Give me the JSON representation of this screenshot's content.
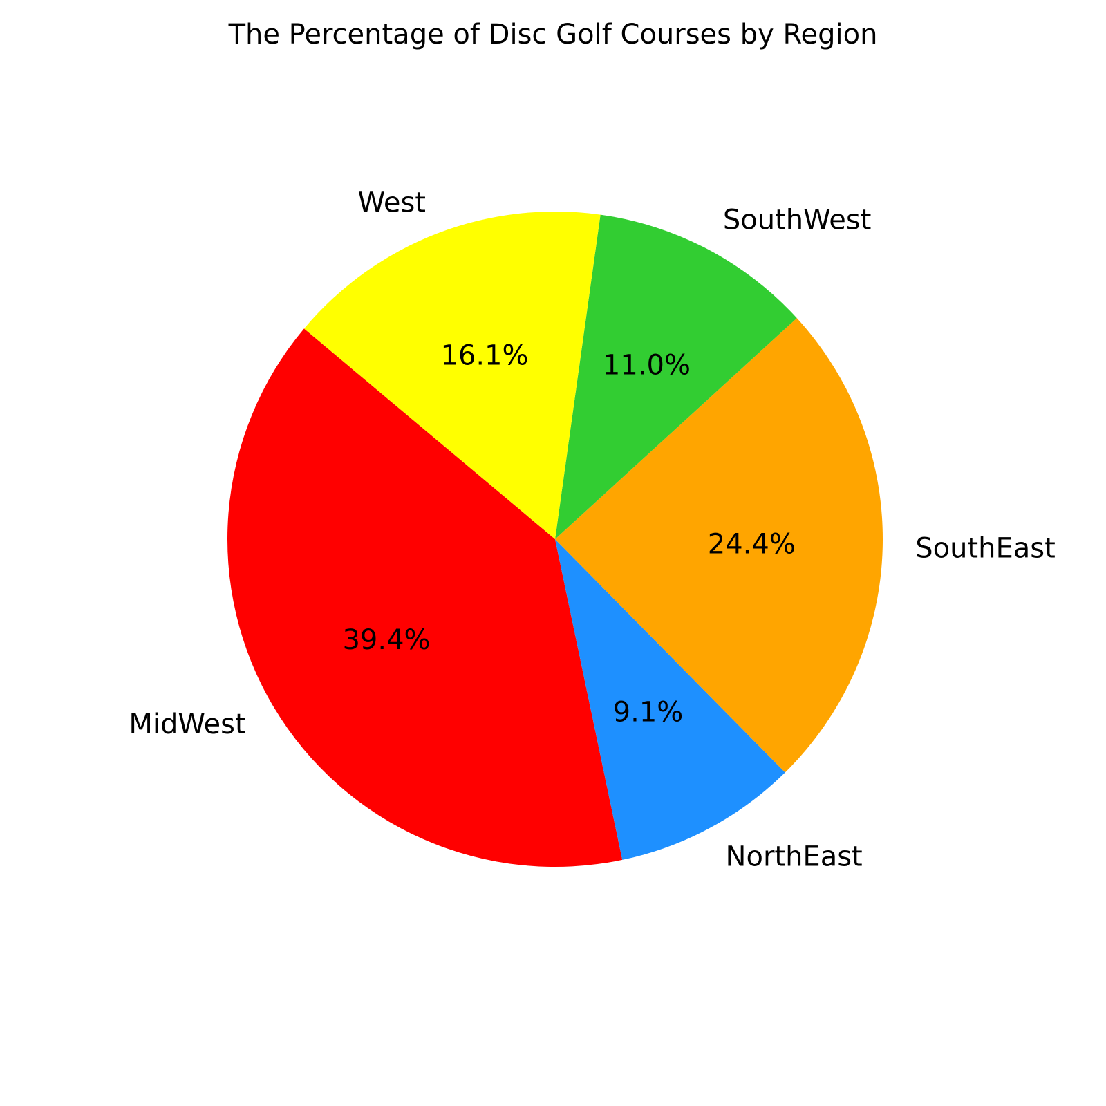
{
  "chart_data": {
    "type": "pie",
    "title": "The Percentage of Disc Golf Courses by Region",
    "start_angle_deg": 140,
    "direction": "counterclockwise",
    "slices": [
      {
        "label": "MidWest",
        "value": 39.4,
        "pct_text": "39.4%",
        "color": "#ff0000"
      },
      {
        "label": "NorthEast",
        "value": 9.1,
        "pct_text": "9.1%",
        "color": "#1e90ff"
      },
      {
        "label": "SouthEast",
        "value": 24.4,
        "pct_text": "24.4%",
        "color": "#ffa500"
      },
      {
        "label": "SouthWest",
        "value": 11.0,
        "pct_text": "11.0%",
        "color": "#32cd32"
      },
      {
        "label": "West",
        "value": 16.1,
        "pct_text": "16.1%",
        "color": "#ffff00"
      }
    ]
  }
}
